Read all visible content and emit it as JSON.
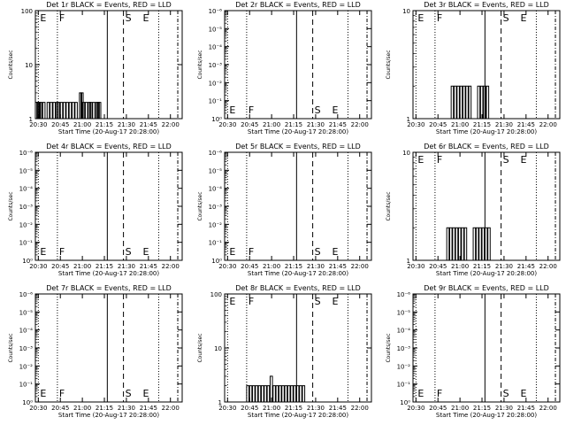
{
  "page": {
    "x_tick_labels": [
      "20:30",
      "20:45",
      "21:00",
      "21:15",
      "21:30",
      "21:45",
      "22:00"
    ],
    "xlabel": "Start Time (20-Aug-17 20:28:00)",
    "ylabel": "Counts/sec"
  },
  "vertical_marker_labels": [
    "E",
    "F",
    "S",
    "E"
  ],
  "chart_data": [
    {
      "type": "bar",
      "title": "Det 1r BLACK = Events, RED = LLD",
      "ylog": true,
      "ylim": [
        1,
        100
      ],
      "ytick_labels": [
        "1",
        "10",
        "100"
      ],
      "x_range": [
        "20:28",
        "22:08"
      ],
      "events": [
        {
          "t": "20:28",
          "y": 2
        },
        {
          "t": "20:29",
          "y": 2
        },
        {
          "t": "20:30",
          "y": 2
        },
        {
          "t": "20:31",
          "y": 2
        },
        {
          "t": "20:33",
          "y": 2
        },
        {
          "t": "20:36",
          "y": 2
        },
        {
          "t": "20:38",
          "y": 2
        },
        {
          "t": "20:40",
          "y": 2
        },
        {
          "t": "20:42",
          "y": 2
        },
        {
          "t": "20:43",
          "y": 2
        },
        {
          "t": "20:45",
          "y": 2
        },
        {
          "t": "20:47",
          "y": 2
        },
        {
          "t": "20:49",
          "y": 2
        },
        {
          "t": "20:51",
          "y": 2
        },
        {
          "t": "20:53",
          "y": 2
        },
        {
          "t": "20:55",
          "y": 2
        },
        {
          "t": "20:58",
          "y": 3
        },
        {
          "t": "20:59",
          "y": 3
        },
        {
          "t": "21:00",
          "y": 2
        },
        {
          "t": "21:02",
          "y": 2
        },
        {
          "t": "21:04",
          "y": 2
        },
        {
          "t": "21:05",
          "y": 2
        },
        {
          "t": "21:07",
          "y": 2
        },
        {
          "t": "21:09",
          "y": 2
        },
        {
          "t": "21:10",
          "y": 2
        },
        {
          "t": "21:11",
          "y": 2
        }
      ],
      "markers": {
        "E": "20:30",
        "F": "20:43",
        "S": "21:28",
        "E2": "21:40"
      }
    },
    {
      "type": "bar",
      "title": "Det 2r BLACK = Events, RED = LLD",
      "ylog": true,
      "ylim": [
        1,
        1e-06
      ],
      "ytick_labels": [
        "10⁰",
        "10⁻¹",
        "10⁻²",
        "10⁻³",
        "10⁻⁴",
        "10⁻⁵",
        "10⁻⁶"
      ],
      "events": [],
      "markers": {
        "E": "20:30",
        "F": "20:43",
        "S": "21:28",
        "E2": "21:40"
      }
    },
    {
      "type": "bar",
      "title": "Det 3r BLACK = Events, RED = LLD",
      "ylog": true,
      "ylim": [
        1,
        10
      ],
      "ytick_labels": [
        "1",
        "10"
      ],
      "events": [
        {
          "t": "20:54",
          "y": 2
        },
        {
          "t": "20:56",
          "y": 2
        },
        {
          "t": "20:58",
          "y": 2
        },
        {
          "t": "21:00",
          "y": 2
        },
        {
          "t": "21:02",
          "y": 2
        },
        {
          "t": "21:04",
          "y": 2
        },
        {
          "t": "21:06",
          "y": 2
        },
        {
          "t": "21:12",
          "y": 2
        },
        {
          "t": "21:14",
          "y": 2
        },
        {
          "t": "21:16",
          "y": 2
        },
        {
          "t": "21:18",
          "y": 2
        }
      ],
      "markers": {
        "E": "20:30",
        "F": "20:43",
        "S": "21:28",
        "E2": "21:40"
      }
    },
    {
      "type": "bar",
      "title": "Det 4r BLACK = Events, RED = LLD",
      "ylog": true,
      "ylim": [
        1,
        1e-06
      ],
      "ytick_labels": [
        "10⁰",
        "10⁻¹",
        "10⁻²",
        "10⁻³",
        "10⁻⁴",
        "10⁻⁵",
        "10⁻⁶"
      ],
      "events": [],
      "markers": {
        "E": "20:30",
        "F": "20:43",
        "S": "21:28",
        "E2": "21:40"
      }
    },
    {
      "type": "bar",
      "title": "Det 5r BLACK = Events, RED = LLD",
      "ylog": true,
      "ylim": [
        1,
        1e-06
      ],
      "ytick_labels": [
        "10⁰",
        "10⁻¹",
        "10⁻²",
        "10⁻³",
        "10⁻⁴",
        "10⁻⁵",
        "10⁻⁶"
      ],
      "events": [],
      "markers": {
        "E": "20:30",
        "F": "20:43",
        "S": "21:28",
        "E2": "21:40"
      }
    },
    {
      "type": "bar",
      "title": "Det 6r BLACK = Events, RED = LLD",
      "ylog": true,
      "ylim": [
        1,
        10
      ],
      "ytick_labels": [
        "1",
        "10"
      ],
      "events": [
        {
          "t": "20:51",
          "y": 2
        },
        {
          "t": "20:53",
          "y": 2
        },
        {
          "t": "20:55",
          "y": 2
        },
        {
          "t": "20:57",
          "y": 2
        },
        {
          "t": "20:59",
          "y": 2
        },
        {
          "t": "21:01",
          "y": 2
        },
        {
          "t": "21:03",
          "y": 2
        },
        {
          "t": "21:09",
          "y": 2
        },
        {
          "t": "21:11",
          "y": 2
        },
        {
          "t": "21:13",
          "y": 2
        },
        {
          "t": "21:15",
          "y": 2
        },
        {
          "t": "21:17",
          "y": 2
        },
        {
          "t": "21:19",
          "y": 2
        }
      ],
      "markers": {
        "E": "20:30",
        "F": "20:43",
        "S": "21:28",
        "E2": "21:40"
      }
    },
    {
      "type": "bar",
      "title": "Det 7r BLACK = Events, RED = LLD",
      "ylog": true,
      "ylim": [
        1,
        1e-06
      ],
      "ytick_labels": [
        "10⁰",
        "10⁻¹",
        "10⁻²",
        "10⁻³",
        "10⁻⁴",
        "10⁻⁵",
        "10⁻⁶"
      ],
      "events": [],
      "markers": {
        "E": "20:30",
        "F": "20:43",
        "S": "21:28",
        "E2": "21:40"
      }
    },
    {
      "type": "bar",
      "title": "Det 8r BLACK = Events, RED = LLD",
      "ylog": true,
      "ylim": [
        1,
        100
      ],
      "ytick_labels": [
        "1",
        "10",
        "100"
      ],
      "events": [
        {
          "t": "20:43",
          "y": 2
        },
        {
          "t": "20:45",
          "y": 2
        },
        {
          "t": "20:47",
          "y": 2
        },
        {
          "t": "20:49",
          "y": 2
        },
        {
          "t": "20:51",
          "y": 2
        },
        {
          "t": "20:53",
          "y": 2
        },
        {
          "t": "20:55",
          "y": 2
        },
        {
          "t": "20:57",
          "y": 2
        },
        {
          "t": "20:59",
          "y": 3
        },
        {
          "t": "21:01",
          "y": 2
        },
        {
          "t": "21:03",
          "y": 2
        },
        {
          "t": "21:05",
          "y": 2
        },
        {
          "t": "21:07",
          "y": 2
        },
        {
          "t": "21:09",
          "y": 2
        },
        {
          "t": "21:11",
          "y": 2
        },
        {
          "t": "21:13",
          "y": 2
        },
        {
          "t": "21:15",
          "y": 2
        },
        {
          "t": "21:17",
          "y": 2
        },
        {
          "t": "21:19",
          "y": 2
        },
        {
          "t": "21:21",
          "y": 2
        }
      ],
      "markers": {
        "E": "20:30",
        "F": "20:43",
        "S": "21:28",
        "E2": "21:40"
      }
    },
    {
      "type": "bar",
      "title": "Det 9r BLACK = Events, RED = LLD",
      "ylog": true,
      "ylim": [
        1,
        1e-06
      ],
      "ytick_labels": [
        "10⁰",
        "10⁻¹",
        "10⁻²",
        "10⁻³",
        "10⁻⁴",
        "10⁻⁵",
        "10⁻⁶"
      ],
      "events": [],
      "markers": {
        "E": "20:30",
        "F": "20:43",
        "S": "21:28",
        "E2": "21:40"
      }
    }
  ]
}
